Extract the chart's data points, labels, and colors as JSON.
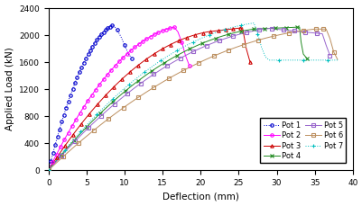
{
  "title": "",
  "xlabel": "Deflection (mm)",
  "ylabel": "Applied Load (kN)",
  "xlim": [
    0,
    40
  ],
  "ylim": [
    0,
    2400
  ],
  "xticks": [
    0,
    5,
    10,
    15,
    20,
    25,
    30,
    35,
    40
  ],
  "yticks": [
    0,
    400,
    800,
    1200,
    1600,
    2000,
    2400
  ],
  "pots": {
    "Pot 1": {
      "color": "#0000CD",
      "linestyle": "dotted",
      "marker": "o",
      "markersize": 2.5
    },
    "Pot 2": {
      "color": "#FF00FF",
      "linestyle": "solid",
      "marker": "o",
      "markersize": 2.5
    },
    "Pot 3": {
      "color": "#CC0000",
      "linestyle": "solid",
      "marker": "^",
      "markersize": 2.5
    },
    "Pot 4": {
      "color": "#228B22",
      "linestyle": "solid",
      "marker": "x",
      "markersize": 3.5
    },
    "Pot 5": {
      "color": "#9966CC",
      "linestyle": "solid",
      "marker": "s",
      "markersize": 2.5
    },
    "Pot 6": {
      "color": "#BC8F5F",
      "linestyle": "solid",
      "marker": "s",
      "markersize": 2.5
    },
    "Pot 7": {
      "color": "#00BFBF",
      "linestyle": "dotted",
      "marker": "+",
      "markersize": 3.5
    }
  }
}
